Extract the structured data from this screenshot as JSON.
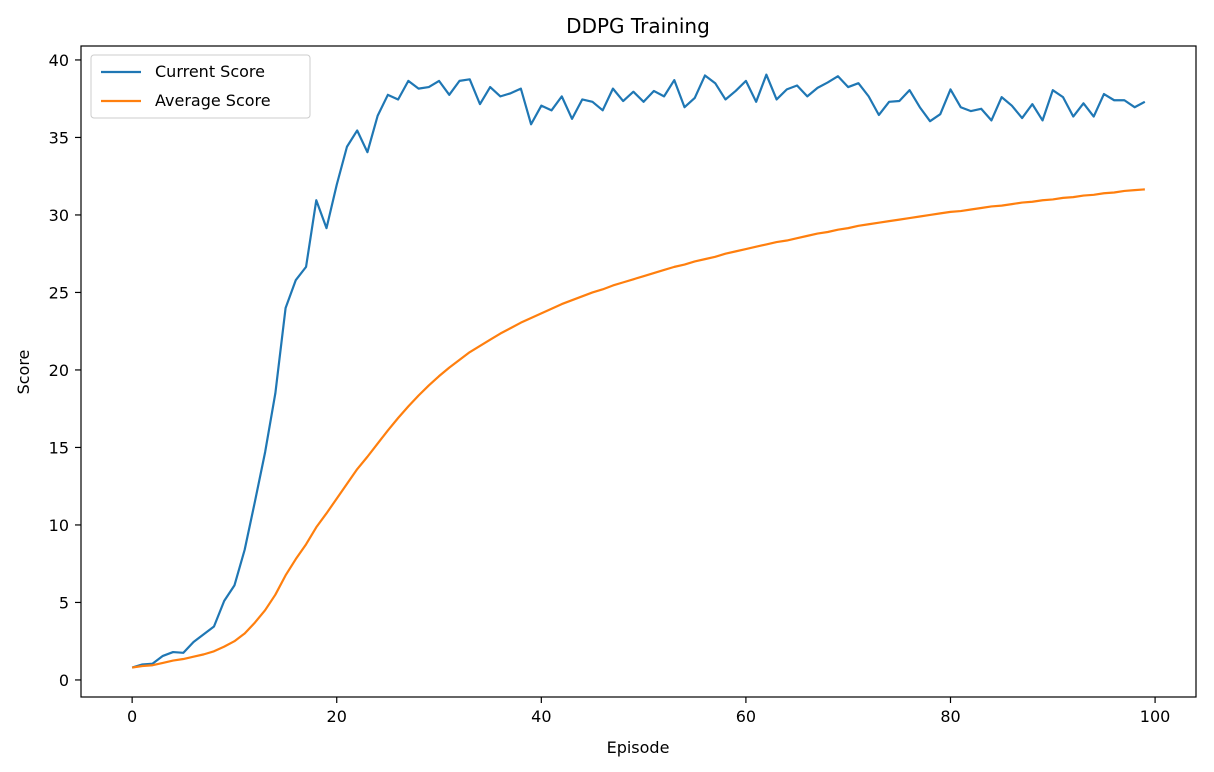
{
  "chart_data": {
    "type": "line",
    "title": "DDPG Training",
    "xlabel": "Episode",
    "ylabel": "Score",
    "xlim": [
      -5,
      104
    ],
    "ylim": [
      -1.1,
      40.9
    ],
    "x_ticks": [
      0,
      20,
      40,
      60,
      80,
      100
    ],
    "y_ticks": [
      0,
      5,
      10,
      15,
      20,
      25,
      30,
      35,
      40
    ],
    "grid": false,
    "legend_position": "top-left",
    "series": [
      {
        "name": "Current Score",
        "color": "#1f77b4",
        "values": [
          0.8,
          1.0,
          1.05,
          1.55,
          1.8,
          1.75,
          2.45,
          2.95,
          3.45,
          5.1,
          6.1,
          8.4,
          11.5,
          14.7,
          18.5,
          24.0,
          25.8,
          26.65,
          30.95,
          29.15,
          31.95,
          34.4,
          35.45,
          34.05,
          36.4,
          37.75,
          37.45,
          38.65,
          38.15,
          38.25,
          38.65,
          37.75,
          38.65,
          38.75,
          37.15,
          38.25,
          37.65,
          37.85,
          38.15,
          35.85,
          37.05,
          36.75,
          37.65,
          36.2,
          37.45,
          37.3,
          36.75,
          38.15,
          37.35,
          37.95,
          37.3,
          38.0,
          37.65,
          38.7,
          36.95,
          37.55,
          39.0,
          38.5,
          37.45,
          38.0,
          38.65,
          37.3,
          39.05,
          37.45,
          38.1,
          38.35,
          37.65,
          38.2,
          38.55,
          38.95,
          38.25,
          38.5,
          37.65,
          36.45,
          37.3,
          37.35,
          38.05,
          36.95,
          36.05,
          36.5,
          38.1,
          36.95,
          36.7,
          36.85,
          36.1,
          37.6,
          37.05,
          36.25,
          37.15,
          36.1,
          38.05,
          37.6,
          36.35,
          37.2,
          36.35,
          37.8,
          37.4,
          37.4,
          36.95,
          37.3
        ]
      },
      {
        "name": "Average Score",
        "color": "#ff7f0e",
        "values": [
          0.8,
          0.9,
          0.95,
          1.1,
          1.25,
          1.35,
          1.5,
          1.65,
          1.85,
          2.15,
          2.5,
          3.0,
          3.7,
          4.5,
          5.5,
          6.75,
          7.8,
          8.75,
          9.85,
          10.75,
          11.7,
          12.65,
          13.6,
          14.4,
          15.25,
          16.1,
          16.9,
          17.65,
          18.35,
          19.0,
          19.6,
          20.15,
          20.65,
          21.15,
          21.55,
          21.95,
          22.35,
          22.7,
          23.05,
          23.35,
          23.65,
          23.95,
          24.25,
          24.5,
          24.75,
          25.0,
          25.2,
          25.45,
          25.65,
          25.85,
          26.05,
          26.25,
          26.45,
          26.65,
          26.8,
          27.0,
          27.15,
          27.3,
          27.5,
          27.65,
          27.8,
          27.95,
          28.1,
          28.25,
          28.35,
          28.5,
          28.65,
          28.8,
          28.9,
          29.05,
          29.15,
          29.3,
          29.4,
          29.5,
          29.6,
          29.7,
          29.8,
          29.9,
          30.0,
          30.1,
          30.2,
          30.25,
          30.35,
          30.45,
          30.55,
          30.6,
          30.7,
          30.8,
          30.85,
          30.95,
          31.0,
          31.1,
          31.15,
          31.25,
          31.3,
          31.4,
          31.45,
          31.55,
          31.6,
          31.65
        ]
      }
    ]
  }
}
